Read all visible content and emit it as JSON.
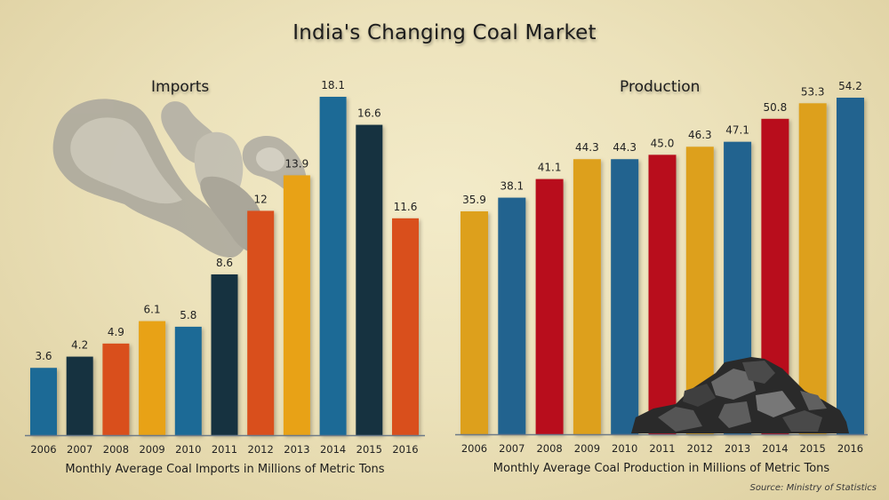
{
  "title": "India's Changing Coal Market",
  "source": "Source: Ministry of Statistics",
  "chart_data": [
    {
      "type": "bar",
      "title": "Imports",
      "xlabel": "Monthly Average Coal Imports in Millions of Metric Tons",
      "ylabel": "",
      "categories": [
        "2006",
        "2007",
        "2008",
        "2009",
        "2010",
        "2011",
        "2012",
        "2013",
        "2014",
        "2015",
        "2016"
      ],
      "values": [
        3.6,
        4.2,
        4.9,
        6.1,
        5.8,
        8.6,
        12,
        13.9,
        18.1,
        16.6,
        11.6
      ],
      "value_labels": [
        "3.6",
        "4.2",
        "4.9",
        "6.1",
        "5.8",
        "8.6",
        "12",
        "13.9",
        "18.1",
        "16.6",
        "11.6"
      ],
      "colors": [
        "#1f6a96",
        "#12303f",
        "#d9501a",
        "#e8a214",
        "#1f6a96",
        "#12303f",
        "#d9501a",
        "#e8a214",
        "#1f6a96",
        "#12303f",
        "#d9501a"
      ],
      "ylim": [
        0,
        18.1
      ],
      "grid": false,
      "decoration": "smoke"
    },
    {
      "type": "bar",
      "title": "Production",
      "xlabel": "Monthly Average Coal Production in Millions of Metric Tons",
      "ylabel": "",
      "categories": [
        "2006",
        "2007",
        "2008",
        "2009",
        "2010",
        "2011",
        "2012",
        "2013",
        "2014",
        "2015",
        "2016"
      ],
      "values": [
        35.9,
        38.1,
        41.1,
        44.3,
        44.3,
        45.0,
        46.3,
        47.1,
        50.8,
        53.3,
        54.2
      ],
      "value_labels": [
        "35.9",
        "38.1",
        "41.1",
        "44.3",
        "44.3",
        "45.0",
        "46.3",
        "47.1",
        "50.8",
        "53.3",
        "54.2"
      ],
      "colors": [
        "#dda01e",
        "#21648f",
        "#b8101a",
        "#dda01e",
        "#21648f",
        "#b8101a",
        "#dda01e",
        "#21648f",
        "#b8101a",
        "#dda01e",
        "#21648f"
      ],
      "ylim": [
        0,
        54.2
      ],
      "grid": false,
      "decoration": "coal-pile"
    }
  ]
}
